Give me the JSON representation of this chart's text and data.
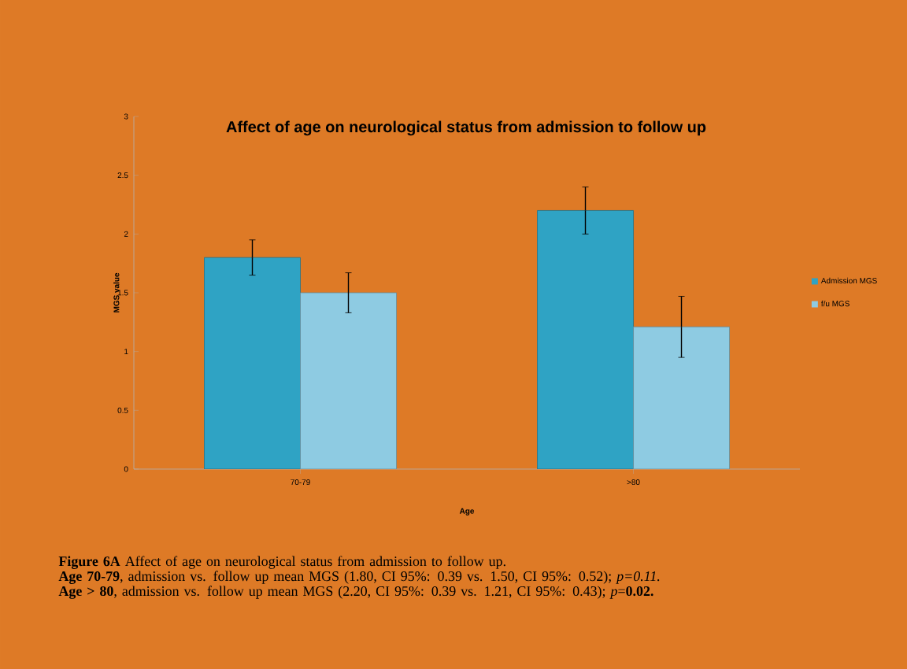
{
  "chart_data": {
    "type": "bar",
    "title": "Affect of age on neurological status from admission to follow up",
    "xlabel": "Age",
    "ylabel": "MGS value",
    "categories": [
      "70-79",
      ">80"
    ],
    "series": [
      {
        "name": "Admission MGS",
        "color": "#2fa3c4",
        "values": [
          1.8,
          2.2
        ],
        "errors": [
          0.15,
          0.2
        ]
      },
      {
        "name": "f/u MGS",
        "color": "#8ecbe2",
        "values": [
          1.5,
          1.21
        ],
        "errors": [
          0.17,
          0.26
        ]
      }
    ],
    "ylim": [
      0,
      3
    ],
    "yticks": [
      0,
      0.5,
      1,
      1.5,
      2,
      2.5,
      3
    ],
    "legend": "right",
    "grid": false,
    "annotations": [
      "**Figure 6A** Affect of age on neurological status from admission to follow up.",
      "**Age 70-79**, admission vs. follow up mean MGS (1.80, CI 95%: 0.39 vs. 1.50, CI 95%: 0.52); *p=0.11.*",
      "**Age > 80**, admission vs. follow up mean MGS (2.20, CI 95%: 0.39 vs. 1.21, CI 95%: 0.43); *p*=**0.02.**"
    ]
  }
}
